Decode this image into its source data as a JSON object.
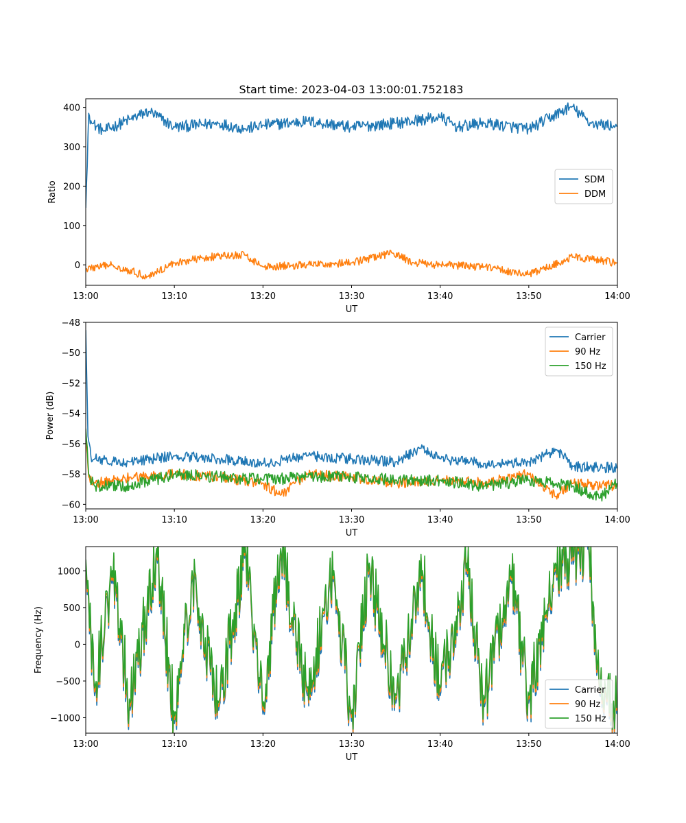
{
  "title": "Start time: 2023-04-03 13:00:01.752183",
  "colors": {
    "blue": "#1f77b4",
    "orange": "#ff7f0e",
    "green": "#2ca02c"
  },
  "chart_data": [
    {
      "type": "line",
      "id": "ratio",
      "title": "Start time: 2023-04-03 13:00:01.752183",
      "xlabel": "UT",
      "ylabel": "Ratio",
      "xlim": [
        "13:00",
        "14:00"
      ],
      "ylim": [
        -52,
        422
      ],
      "x_ticks": [
        "13:00",
        "13:10",
        "13:20",
        "13:30",
        "13:40",
        "13:50",
        "14:00"
      ],
      "y_ticks": [
        400,
        300,
        200,
        100,
        0
      ],
      "legend_position": "center-right",
      "series": [
        {
          "name": "SDM",
          "color": "#1f77b4",
          "x": [
            "13:00",
            "13:00:20",
            "13:00:40",
            "13:02",
            "13:05",
            "13:07:10",
            "13:10",
            "13:15",
            "13:18",
            "13:20",
            "13:25",
            "13:30",
            "13:35",
            "13:40",
            "13:42",
            "13:45",
            "13:50",
            "13:54:45",
            "13:57",
            "14:00"
          ],
          "values": [
            145,
            385,
            360,
            340,
            370,
            390,
            350,
            360,
            345,
            355,
            365,
            350,
            360,
            375,
            350,
            360,
            345,
            402,
            360,
            352
          ],
          "noise": 15
        },
        {
          "name": "DDM",
          "color": "#ff7f0e",
          "x": [
            "13:00",
            "13:03",
            "13:07",
            "13:10",
            "13:14",
            "13:18",
            "13:20",
            "13:25",
            "13:30",
            "13:34:40",
            "13:37",
            "13:40",
            "13:45",
            "13:50",
            "13:55",
            "14:00"
          ],
          "values": [
            -10,
            0,
            -30,
            5,
            20,
            25,
            -5,
            0,
            5,
            30,
            5,
            0,
            -5,
            -25,
            20,
            5
          ],
          "noise": 10
        }
      ]
    },
    {
      "type": "line",
      "id": "power",
      "xlabel": "UT",
      "ylabel": "Power (dB)",
      "xlim": [
        "13:00",
        "14:00"
      ],
      "ylim": [
        -60.3,
        -48.0
      ],
      "x_ticks": [
        "13:00",
        "13:10",
        "13:20",
        "13:30",
        "13:40",
        "13:50",
        "14:00"
      ],
      "y_ticks": [
        -48,
        -50,
        -52,
        -54,
        -56,
        -58,
        -60
      ],
      "legend_position": "top-right",
      "series": [
        {
          "name": "Carrier",
          "color": "#1f77b4",
          "x": [
            "13:00",
            "13:00:15",
            "13:00:40",
            "13:01",
            "13:05",
            "13:10",
            "13:15",
            "13:20",
            "13:25",
            "13:30",
            "13:35",
            "13:37:45",
            "13:40",
            "13:45",
            "13:50",
            "13:53:10",
            "13:55",
            "14:00"
          ],
          "values": [
            -48.5,
            -55.5,
            -57.2,
            -57.0,
            -57.2,
            -56.8,
            -57.0,
            -57.3,
            -56.8,
            -57.0,
            -57.2,
            -56.3,
            -57.0,
            -57.3,
            -57.2,
            -56.4,
            -57.5,
            -57.6
          ],
          "noise": 0.35
        },
        {
          "name": "90 Hz",
          "color": "#ff7f0e",
          "x": [
            "13:00",
            "13:00:20",
            "13:01",
            "13:05",
            "13:10",
            "13:15",
            "13:20",
            "13:22",
            "13:25",
            "13:30",
            "13:35",
            "13:40",
            "13:45",
            "13:50",
            "13:53",
            "13:55",
            "14:00"
          ],
          "values": [
            -55.5,
            -58.2,
            -58.6,
            -58.2,
            -58.0,
            -58.2,
            -58.6,
            -59.4,
            -58.0,
            -58.2,
            -58.6,
            -58.4,
            -58.6,
            -58.0,
            -59.5,
            -58.6,
            -58.8
          ],
          "noise": 0.35
        },
        {
          "name": "150 Hz",
          "color": "#2ca02c",
          "x": [
            "13:00",
            "13:00:20",
            "13:01",
            "13:05",
            "13:10",
            "13:15",
            "13:20",
            "13:25",
            "13:30",
            "13:35",
            "13:40",
            "13:45",
            "13:50",
            "13:55",
            "13:58",
            "14:00"
          ],
          "values": [
            -55.0,
            -58.0,
            -58.8,
            -58.8,
            -58.0,
            -58.2,
            -58.4,
            -58.2,
            -58.2,
            -58.4,
            -58.4,
            -58.8,
            -58.4,
            -58.8,
            -59.6,
            -58.6
          ],
          "noise": 0.4
        }
      ]
    },
    {
      "type": "line",
      "id": "frequency",
      "xlabel": "UT",
      "ylabel": "Frequency (Hz)",
      "xlim": [
        "13:00",
        "14:00"
      ],
      "ylim": [
        -1210,
        1330
      ],
      "x_ticks": [
        "13:00",
        "13:10",
        "13:20",
        "13:30",
        "13:40",
        "13:50",
        "14:00"
      ],
      "y_ticks": [
        1000,
        500,
        0,
        -500,
        -1000
      ],
      "legend_position": "bottom-right",
      "series": [
        {
          "name": "Carrier",
          "color": "#1f77b4",
          "x": [
            "13:00",
            "13:01",
            "13:03",
            "13:05",
            "13:08",
            "13:10",
            "13:12",
            "13:15",
            "13:18",
            "13:20",
            "13:22",
            "13:25",
            "13:28",
            "13:30",
            "13:32",
            "13:35",
            "13:38",
            "13:40",
            "13:43",
            "13:45",
            "13:48",
            "13:50",
            "13:53",
            "13:56:45",
            "13:58",
            "14:00"
          ],
          "values": [
            1050,
            -700,
            900,
            -900,
            1200,
            -1080,
            900,
            -900,
            1230,
            -950,
            1200,
            -700,
            900,
            -1050,
            1000,
            -800,
            900,
            -700,
            1000,
            -850,
            900,
            -800,
            1000,
            1300,
            -700,
            -950
          ],
          "noise": 420
        },
        {
          "name": "90 Hz",
          "color": "#ff7f0e",
          "offset_from": "Carrier",
          "offset": 40
        },
        {
          "name": "150 Hz",
          "color": "#2ca02c",
          "offset_from": "Carrier",
          "offset": 80
        }
      ]
    }
  ]
}
